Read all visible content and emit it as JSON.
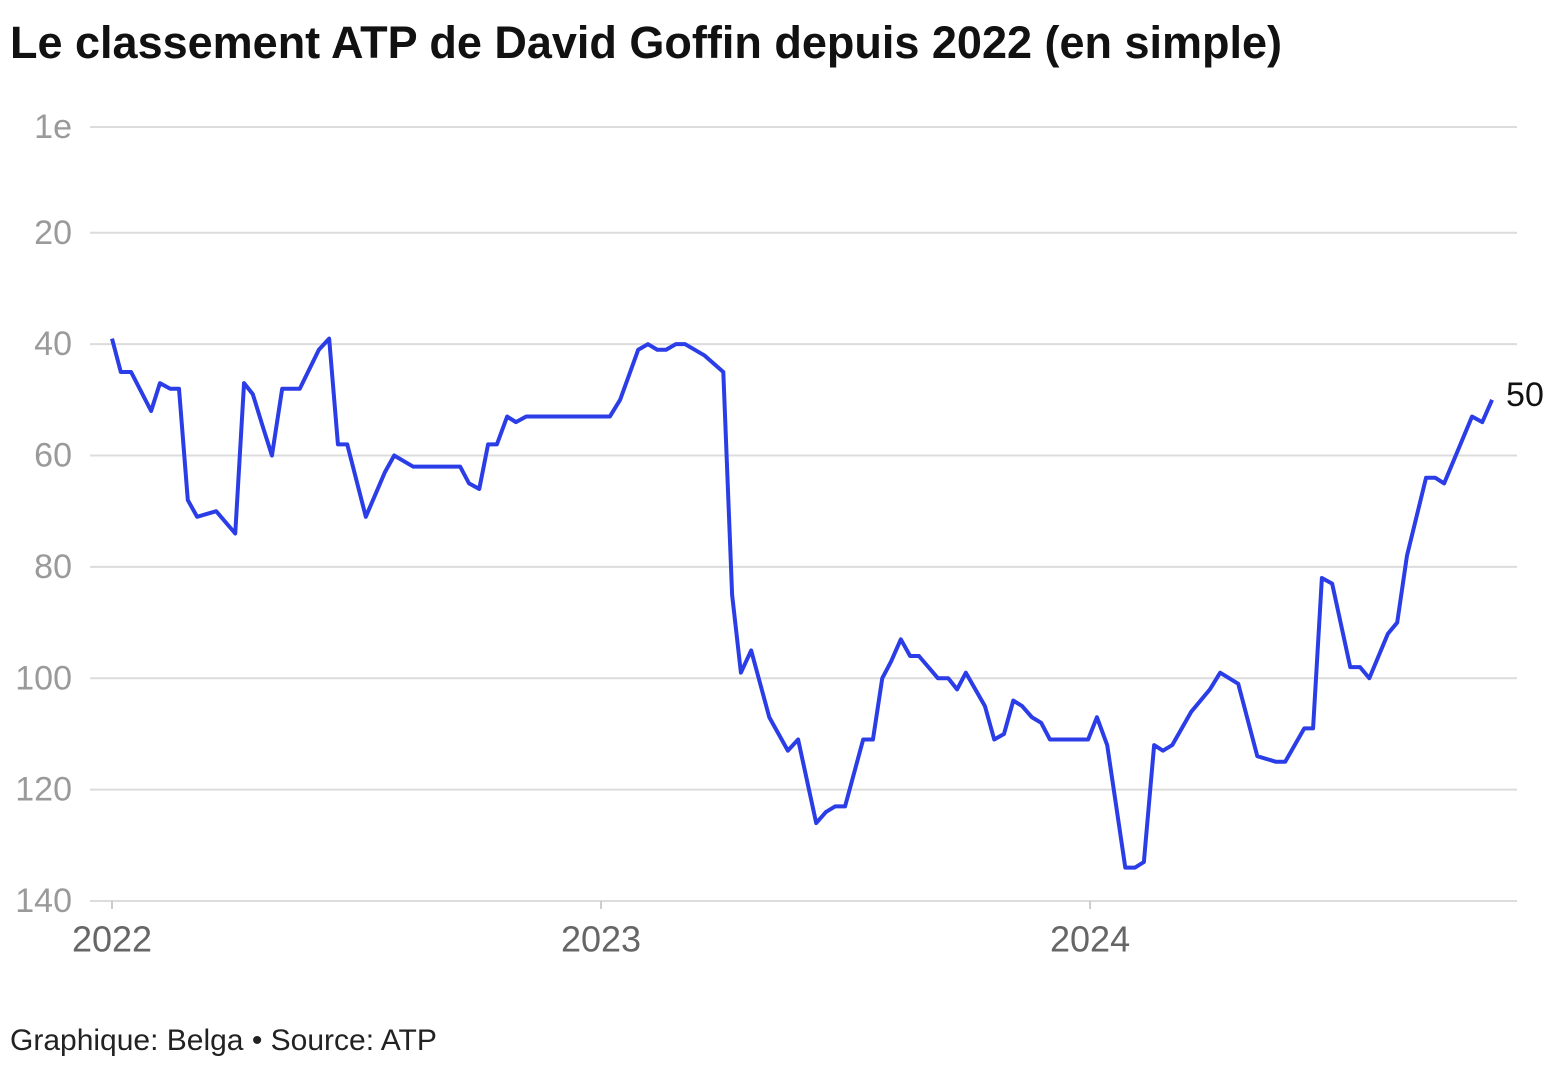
{
  "chart_data": {
    "type": "line",
    "title": "Le classement ATP de David Goffin depuis 2022 (en simple)",
    "source": "Graphique: Belga • Source: ATP",
    "color": "#2b3de6",
    "invert_y": true,
    "grid": true,
    "ylim": [
      1,
      140
    ],
    "yticks": [
      {
        "value": 1,
        "label": "1e"
      },
      20,
      40,
      60,
      80,
      100,
      120,
      140
    ],
    "xlim": [
      2021.955,
      2024.873
    ],
    "xticks": [
      2022,
      2023,
      2024
    ],
    "x": [
      2022.0,
      2022.018,
      2022.039,
      2022.08,
      2022.098,
      2022.119,
      2022.137,
      2022.155,
      2022.174,
      2022.213,
      2022.252,
      2022.27,
      2022.288,
      2022.309,
      2022.327,
      2022.348,
      2022.384,
      2022.423,
      2022.444,
      2022.462,
      2022.481,
      2022.519,
      2022.558,
      2022.577,
      2022.616,
      2022.712,
      2022.73,
      2022.751,
      2022.769,
      2022.787,
      2022.808,
      2022.826,
      2022.847,
      2023.018,
      2023.039,
      2023.076,
      2023.096,
      2023.115,
      2023.133,
      2023.153,
      2023.172,
      2023.211,
      2023.25,
      2023.268,
      2023.286,
      2023.307,
      2023.344,
      2023.382,
      2023.403,
      2023.44,
      2023.46,
      2023.479,
      2023.499,
      2023.536,
      2023.556,
      2023.575,
      2023.593,
      2023.613,
      2023.632,
      2023.65,
      2023.689,
      2023.71,
      2023.728,
      2023.746,
      2023.785,
      2023.804,
      2023.824,
      2023.843,
      2023.861,
      2023.881,
      2023.9,
      2023.918,
      2023.996,
      2024.014,
      2024.035,
      2024.072,
      2024.092,
      2024.11,
      2024.131,
      2024.149,
      2024.168,
      2024.207,
      2024.245,
      2024.266,
      2024.303,
      2024.342,
      2024.38,
      2024.399,
      2024.438,
      2024.456,
      2024.474,
      2024.495,
      2024.532,
      2024.552,
      2024.571,
      2024.609,
      2024.628,
      2024.648,
      2024.687,
      2024.706,
      2024.724,
      2024.781,
      2024.802,
      2024.822
    ],
    "values": [
      39,
      45,
      45,
      52,
      47,
      48,
      48,
      68,
      71,
      70,
      74,
      47,
      49,
      55,
      60,
      48,
      48,
      41,
      39,
      58,
      58,
      71,
      63,
      60,
      62,
      62,
      65,
      66,
      58,
      58,
      53,
      54,
      53,
      53,
      50,
      41,
      40,
      41,
      41,
      40,
      40,
      42,
      45,
      85,
      99,
      95,
      107,
      113,
      111,
      126,
      124,
      123,
      123,
      111,
      111,
      100,
      97,
      93,
      96,
      96,
      100,
      100,
      102,
      99,
      105,
      111,
      110,
      104,
      105,
      107,
      108,
      111,
      111,
      107,
      112,
      134,
      134,
      133,
      112,
      113,
      112,
      106,
      102,
      99,
      101,
      114,
      115,
      115,
      109,
      109,
      82,
      83,
      98,
      98,
      100,
      92,
      90,
      78,
      64,
      64,
      65,
      53,
      54,
      50
    ]
  }
}
